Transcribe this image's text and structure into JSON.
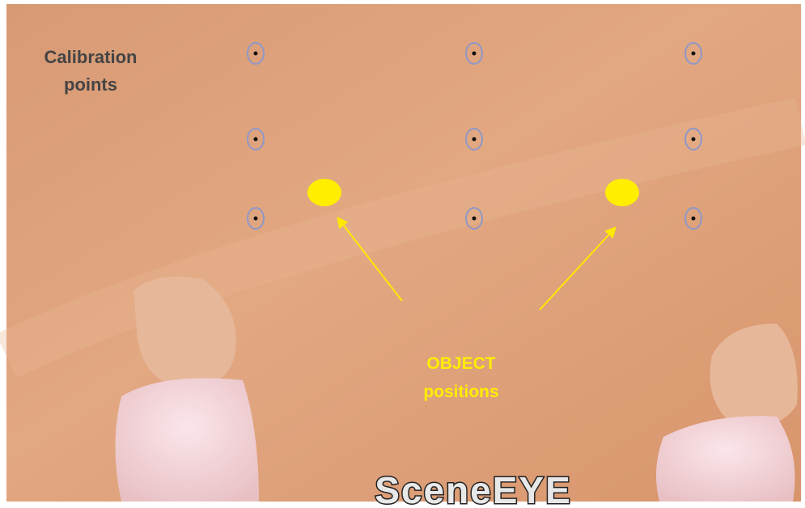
{
  "calibration_label": [
    "Calibration",
    "points"
  ],
  "object_label": [
    "OBJECT",
    "positions"
  ],
  "watermark": "SceneEYE"
}
